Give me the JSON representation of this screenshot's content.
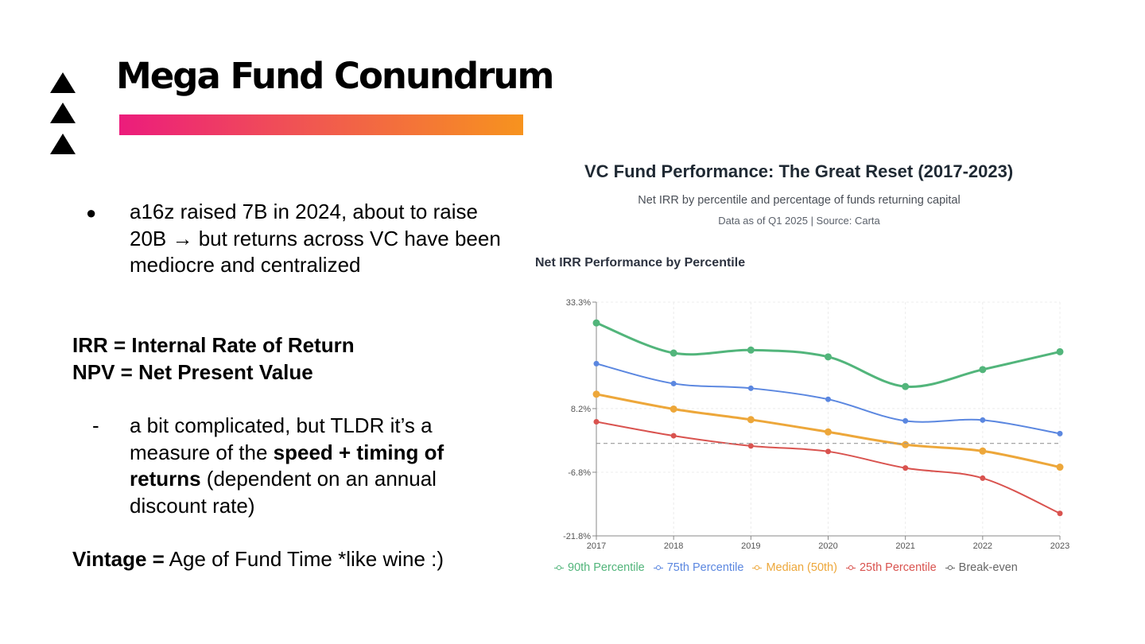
{
  "slide": {
    "title": "Mega Fund Conundrum",
    "bullet_symbol": "●",
    "bullet_text": "a16z raised 7B in 2024, about to raise 20B → but returns across VC have been mediocre and centralized",
    "definitions": {
      "irr": "IRR = Internal Rate of Return",
      "npv": "NPV = Net Present Value"
    },
    "dash_symbol": "-",
    "dash_text_1": "a bit complicated, but TLDR it’s a measure of the ",
    "dash_text_bold": "speed + timing of returns",
    "dash_text_2": " (dependent on an annual discount rate)",
    "vintage_label": "Vintage =",
    "vintage_text": " Age of Fund Time *like wine :)"
  },
  "chart_header": {
    "title": "VC Fund Performance: The Great Reset (2017-2023)",
    "subtitle": "Net IRR by percentile and percentage of funds returning capital",
    "source": "Data as of Q1 2025 | Source: Carta",
    "section_title": "Net IRR Performance by Percentile"
  },
  "chart_data": {
    "type": "line",
    "title": "Net IRR Performance by Percentile",
    "x": [
      "2017",
      "2018",
      "2019",
      "2020",
      "2021",
      "2022",
      "2023"
    ],
    "y_ticks": [
      "33.3%",
      "8.2%",
      "-6.8%",
      "-21.8%"
    ],
    "y_tick_values": [
      33.3,
      8.2,
      -6.8,
      -21.8
    ],
    "ylim": [
      -21.8,
      33.3
    ],
    "grid": true,
    "legend_position": "bottom",
    "series": [
      {
        "name": "90th Percentile",
        "color": "#52b57b",
        "values": [
          28.4,
          21.3,
          22.0,
          20.4,
          13.4,
          17.4,
          21.6
        ]
      },
      {
        "name": "75th Percentile",
        "color": "#5b87e0",
        "values": [
          18.8,
          14.1,
          13.0,
          10.4,
          5.3,
          5.5,
          2.3
        ]
      },
      {
        "name": "Median (50th)",
        "color": "#eda73a",
        "values": [
          11.6,
          8.1,
          5.6,
          2.7,
          -0.3,
          -1.8,
          -5.6
        ]
      },
      {
        "name": "25th Percentile",
        "color": "#d9534f",
        "values": [
          5.1,
          1.8,
          -0.6,
          -1.9,
          -5.8,
          -8.2,
          -16.5
        ]
      },
      {
        "name": "Break-even",
        "color": "#777777",
        "values": [
          0,
          0,
          0,
          0,
          0,
          0,
          0
        ],
        "dashed": true
      }
    ]
  }
}
